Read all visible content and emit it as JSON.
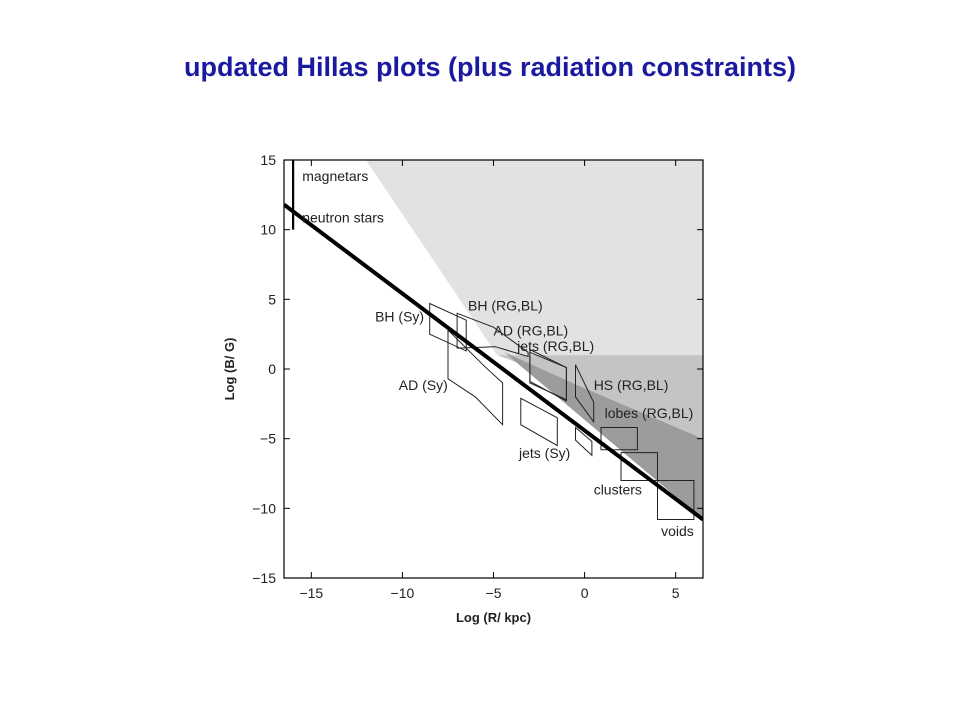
{
  "page": {
    "title": "updated Hillas plots (plus radiation constraints)"
  },
  "chart_data": {
    "type": "scatter",
    "title": "",
    "xlabel": "Log (R/ kpc)",
    "ylabel": "Log (B/ G)",
    "xlim": [
      -16.5,
      6.5
    ],
    "ylim": [
      -15,
      15
    ],
    "xticks": [
      -15,
      -10,
      -5,
      0,
      5
    ],
    "yticks": [
      15,
      10,
      5,
      0,
      -5,
      -10,
      -15
    ],
    "xtick_labels": [
      "−15",
      "−10",
      "−5",
      "0",
      "5"
    ],
    "ytick_labels": [
      "15",
      "10",
      "5",
      "0",
      "−5",
      "−10",
      "−15"
    ],
    "grid": false,
    "colors": {
      "title": "#1a1aa0",
      "light_shade": "#e2e2e2",
      "mid_shade": "#c4c4c4",
      "dark_shade": "#9c9c9c",
      "line": "#000000"
    },
    "shaded_regions": [
      {
        "name": "light",
        "fill": "#e2e2e2",
        "polygon": [
          [
            -12,
            15
          ],
          [
            6.5,
            15
          ],
          [
            6.5,
            1
          ],
          [
            -4.8,
            1
          ]
        ]
      },
      {
        "name": "mid",
        "fill": "#c4c4c4",
        "polygon": [
          [
            -4.8,
            1
          ],
          [
            6.5,
            1
          ],
          [
            6.5,
            -5
          ],
          [
            -0.5,
            -1.1
          ]
        ]
      },
      {
        "name": "dark",
        "fill": "#9c9c9c",
        "polygon": [
          [
            -0.5,
            -1.1
          ],
          [
            6.5,
            -5
          ],
          [
            6.5,
            -10.8
          ],
          [
            -4.4,
            1.2
          ]
        ]
      }
    ],
    "reference_line": {
      "points": [
        [
          -16.5,
          11.8
        ],
        [
          6.5,
          -10.8
        ]
      ]
    },
    "magnetar_bar": {
      "x": -16,
      "y": [
        15,
        10
      ]
    },
    "regions": [
      {
        "label": "magnetars",
        "label_pos": [
          -15.5,
          13.5
        ],
        "polygon": []
      },
      {
        "label": "neutron  stars",
        "label_pos": [
          -15.5,
          10.5
        ],
        "polygon": []
      },
      {
        "label": "BH (Sy)",
        "label_pos": [
          -11.5,
          3.4
        ],
        "polygon": [
          [
            -8.5,
            4.7
          ],
          [
            -6.5,
            3.5
          ],
          [
            -6.5,
            1.3
          ],
          [
            -8.5,
            2.5
          ]
        ]
      },
      {
        "label": "BH (RG,BL)",
        "label_pos": [
          -6.4,
          4.2
        ],
        "polygon": [
          [
            -7,
            4
          ],
          [
            -5,
            3
          ],
          [
            -3.1,
            1.2
          ],
          [
            -3.1,
            0.9
          ],
          [
            -4.9,
            1.6
          ],
          [
            -7,
            1.5
          ]
        ]
      },
      {
        "label": "AD (RG,BL)",
        "label_pos": [
          -5,
          2.4
        ],
        "polygon": [
          [
            -3,
            1.4
          ],
          [
            -1,
            0.1
          ],
          [
            -1,
            -2.3
          ],
          [
            -3,
            -0.9
          ]
        ]
      },
      {
        "label": "jets (RG,BL)",
        "label_pos": [
          -3.7,
          1.3
        ],
        "polygon": [
          [
            -3,
            1.2
          ],
          [
            -1,
            0.1
          ],
          [
            -1,
            -2.2
          ],
          [
            -3,
            -1
          ]
        ]
      },
      {
        "label": "AD (Sy)",
        "label_pos": [
          -10.2,
          -1.5
        ],
        "polygon": [
          [
            -7.5,
            2.8
          ],
          [
            -5.5,
            0.2
          ],
          [
            -4.5,
            -1
          ],
          [
            -4.5,
            -4
          ],
          [
            -6,
            -2
          ],
          [
            -7.5,
            -0.7
          ]
        ]
      },
      {
        "label": "HS (RG,BL)",
        "label_pos": [
          0.5,
          -1.5
        ],
        "polygon": [
          [
            -0.5,
            0.3
          ],
          [
            0.5,
            -2.4
          ],
          [
            0.5,
            -3.8
          ],
          [
            -0.5,
            -2
          ]
        ]
      },
      {
        "label": "jets (Sy)",
        "label_pos": [
          -3.6,
          -6.4
        ],
        "polygon": [
          [
            -3.5,
            -2.1
          ],
          [
            -1.5,
            -3.5
          ],
          [
            -1.5,
            -5.5
          ],
          [
            -3.5,
            -4
          ]
        ]
      },
      {
        "label": "lobes (RG,BL)",
        "label_pos": [
          1.1,
          -3.5
        ],
        "polygon": [
          [
            0.9,
            -4.2
          ],
          [
            2.9,
            -4.2
          ],
          [
            2.9,
            -5.8
          ],
          [
            0.9,
            -5.8
          ]
        ]
      },
      {
        "label": "",
        "label_pos": [
          0,
          0
        ],
        "polygon": [
          [
            -0.5,
            -4.2
          ],
          [
            0.4,
            -5.2
          ],
          [
            0.4,
            -6.2
          ],
          [
            -0.5,
            -5.1
          ]
        ]
      },
      {
        "label": "clusters",
        "label_pos": [
          0.5,
          -9
        ],
        "polygon": [
          [
            2,
            -6
          ],
          [
            4,
            -6
          ],
          [
            4,
            -8
          ],
          [
            2,
            -8
          ]
        ]
      },
      {
        "label": "voids",
        "label_pos": [
          4.2,
          -12
        ],
        "polygon": [
          [
            4,
            -8
          ],
          [
            6,
            -8
          ],
          [
            6,
            -10.8
          ],
          [
            4,
            -10.8
          ]
        ]
      }
    ]
  }
}
